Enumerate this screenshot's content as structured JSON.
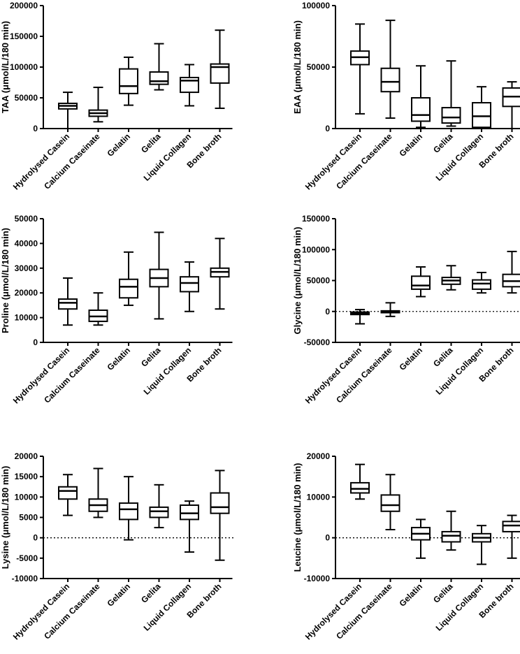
{
  "figure": {
    "title": ""
  },
  "chart_data": [
    {
      "type": "boxplot",
      "ylabel": "TAA (μmol/L/180 min)",
      "ylim": [
        0,
        200000
      ],
      "ticks": [
        0,
        50000,
        100000,
        150000,
        200000
      ],
      "tick_labels": [
        "0",
        "50000",
        "100000",
        "150000",
        "200000"
      ],
      "zero_line": false,
      "categories": [
        "Hydrolysed Casein",
        "Calcium Caseinate",
        "Gelatin",
        "Gelita",
        "Liquid Collagen",
        "Bone broth"
      ],
      "boxes": [
        {
          "min": 0,
          "q1": 32000,
          "median": 37000,
          "q3": 41000,
          "max": 59000
        },
        {
          "min": 11000,
          "q1": 20000,
          "median": 25000,
          "q3": 30000,
          "max": 67000
        },
        {
          "min": 38000,
          "q1": 57000,
          "median": 69000,
          "q3": 97000,
          "max": 116000
        },
        {
          "min": 63000,
          "q1": 72000,
          "median": 77000,
          "q3": 92000,
          "max": 138000
        },
        {
          "min": 37000,
          "q1": 59000,
          "median": 78000,
          "q3": 83000,
          "max": 104000
        },
        {
          "min": 33000,
          "q1": 74000,
          "median": 100000,
          "q3": 105000,
          "max": 160000
        }
      ]
    },
    {
      "type": "boxplot",
      "ylabel": "EAA (μmol/L/180 min)",
      "ylim": [
        0,
        100000
      ],
      "ticks": [
        0,
        50000,
        100000
      ],
      "tick_labels": [
        "0",
        "50000",
        "100000"
      ],
      "zero_line": false,
      "categories": [
        "Hydrolysed Casein",
        "Calcium Caseinate",
        "Gelatin",
        "Gelita",
        "Liquid Collagen",
        "Bone broth"
      ],
      "boxes": [
        {
          "min": 12000,
          "q1": 52000,
          "median": 58000,
          "q3": 63000,
          "max": 85000
        },
        {
          "min": 8500,
          "q1": 30000,
          "median": 38000,
          "q3": 49000,
          "max": 88000
        },
        {
          "min": 1000,
          "q1": 6000,
          "median": 11000,
          "q3": 25000,
          "max": 51000
        },
        {
          "min": 2000,
          "q1": 4500,
          "median": 9000,
          "q3": 17000,
          "max": 55000
        },
        {
          "min": 0,
          "q1": 1000,
          "median": 10000,
          "q3": 21000,
          "max": 34000
        },
        {
          "min": 0,
          "q1": 18000,
          "median": 26000,
          "q3": 33000,
          "max": 38000
        }
      ]
    },
    {
      "type": "boxplot",
      "ylabel": "Proline (μmol/L/180 min)",
      "ylim": [
        0,
        50000
      ],
      "ticks": [
        0,
        10000,
        20000,
        30000,
        40000,
        50000
      ],
      "tick_labels": [
        "0",
        "10000",
        "20000",
        "30000",
        "40000",
        "50000"
      ],
      "zero_line": false,
      "categories": [
        "Hydrolysed Casein",
        "Calcium Caseinate",
        "Gelatin",
        "Gelita",
        "Liquid Collagen",
        "Bone broth"
      ],
      "boxes": [
        {
          "min": 7000,
          "q1": 13500,
          "median": 16000,
          "q3": 17500,
          "max": 26000
        },
        {
          "min": 7000,
          "q1": 8500,
          "median": 10500,
          "q3": 13000,
          "max": 20000
        },
        {
          "min": 15000,
          "q1": 18000,
          "median": 22500,
          "q3": 25500,
          "max": 36500
        },
        {
          "min": 9500,
          "q1": 22500,
          "median": 26000,
          "q3": 29500,
          "max": 44500
        },
        {
          "min": 12500,
          "q1": 20500,
          "median": 24000,
          "q3": 26500,
          "max": 32500
        },
        {
          "min": 13500,
          "q1": 26500,
          "median": 28500,
          "q3": 30000,
          "max": 42000
        }
      ]
    },
    {
      "type": "boxplot",
      "ylabel": "Glycine (μmol/L/180 min)",
      "ylim": [
        -50000,
        150000
      ],
      "ticks": [
        -50000,
        0,
        50000,
        100000,
        150000
      ],
      "tick_labels": [
        "-50000",
        "0",
        "50000",
        "100000",
        "150000"
      ],
      "zero_line": true,
      "categories": [
        "Hydrolysed Casein",
        "Calcium Caseinate",
        "Gelatin",
        "Gelita",
        "Liquid Collagen",
        "Bone broth"
      ],
      "boxes": [
        {
          "min": -20000,
          "q1": -5000,
          "median": -3000,
          "q3": -1000,
          "max": 3000
        },
        {
          "min": -8000,
          "q1": -2000,
          "median": 0,
          "q3": 1000,
          "max": 14000
        },
        {
          "min": 24000,
          "q1": 36000,
          "median": 42000,
          "q3": 57000,
          "max": 72000
        },
        {
          "min": 35000,
          "q1": 44000,
          "median": 50000,
          "q3": 55000,
          "max": 74000
        },
        {
          "min": 30000,
          "q1": 36000,
          "median": 45000,
          "q3": 51000,
          "max": 63000
        },
        {
          "min": 30000,
          "q1": 40000,
          "median": 49000,
          "q3": 60000,
          "max": 97000
        }
      ]
    },
    {
      "type": "boxplot",
      "ylabel": "Lysine (μmol/L/180 min)",
      "ylim": [
        -10000,
        20000
      ],
      "ticks": [
        -10000,
        -5000,
        0,
        5000,
        10000,
        15000,
        20000
      ],
      "tick_labels": [
        "-10000",
        "-5000",
        "0",
        "5000",
        "10000",
        "15000",
        "20000"
      ],
      "zero_line": true,
      "categories": [
        "Hydrolysed Casein",
        "Calcium Caseinate",
        "Gelatin",
        "Gelita",
        "Liquid Collagen",
        "Bone broth"
      ],
      "boxes": [
        {
          "min": 5500,
          "q1": 9500,
          "median": 11500,
          "q3": 12500,
          "max": 15500
        },
        {
          "min": 5000,
          "q1": 6500,
          "median": 8000,
          "q3": 9500,
          "max": 17000
        },
        {
          "min": -500,
          "q1": 4500,
          "median": 7000,
          "q3": 8500,
          "max": 15000
        },
        {
          "min": 2500,
          "q1": 5000,
          "median": 6500,
          "q3": 7500,
          "max": 13000
        },
        {
          "min": -3500,
          "q1": 4500,
          "median": 6000,
          "q3": 8000,
          "max": 9000
        },
        {
          "min": -5500,
          "q1": 6000,
          "median": 7500,
          "q3": 11000,
          "max": 16500
        }
      ]
    },
    {
      "type": "boxplot",
      "ylabel": "Leucine (μmol/L/180 min)",
      "ylim": [
        -10000,
        20000
      ],
      "ticks": [
        -10000,
        0,
        10000,
        20000
      ],
      "tick_labels": [
        "-10000",
        "0",
        "10000",
        "20000"
      ],
      "zero_line": true,
      "categories": [
        "Hydrolysed Casein",
        "Calcium Caseinate",
        "Gelatin",
        "Gelita",
        "Liquid Collagen",
        "Bone broth"
      ],
      "boxes": [
        {
          "min": 9500,
          "q1": 11000,
          "median": 12000,
          "q3": 13500,
          "max": 18000
        },
        {
          "min": 2000,
          "q1": 6500,
          "median": 8000,
          "q3": 10500,
          "max": 15500
        },
        {
          "min": -5000,
          "q1": -500,
          "median": 1000,
          "q3": 2500,
          "max": 4500
        },
        {
          "min": -3000,
          "q1": -1000,
          "median": 500,
          "q3": 1500,
          "max": 6500
        },
        {
          "min": -6500,
          "q1": -1000,
          "median": 0,
          "q3": 1000,
          "max": 3000
        },
        {
          "min": -5000,
          "q1": 1500,
          "median": 3000,
          "q3": 4000,
          "max": 5500
        }
      ]
    }
  ]
}
